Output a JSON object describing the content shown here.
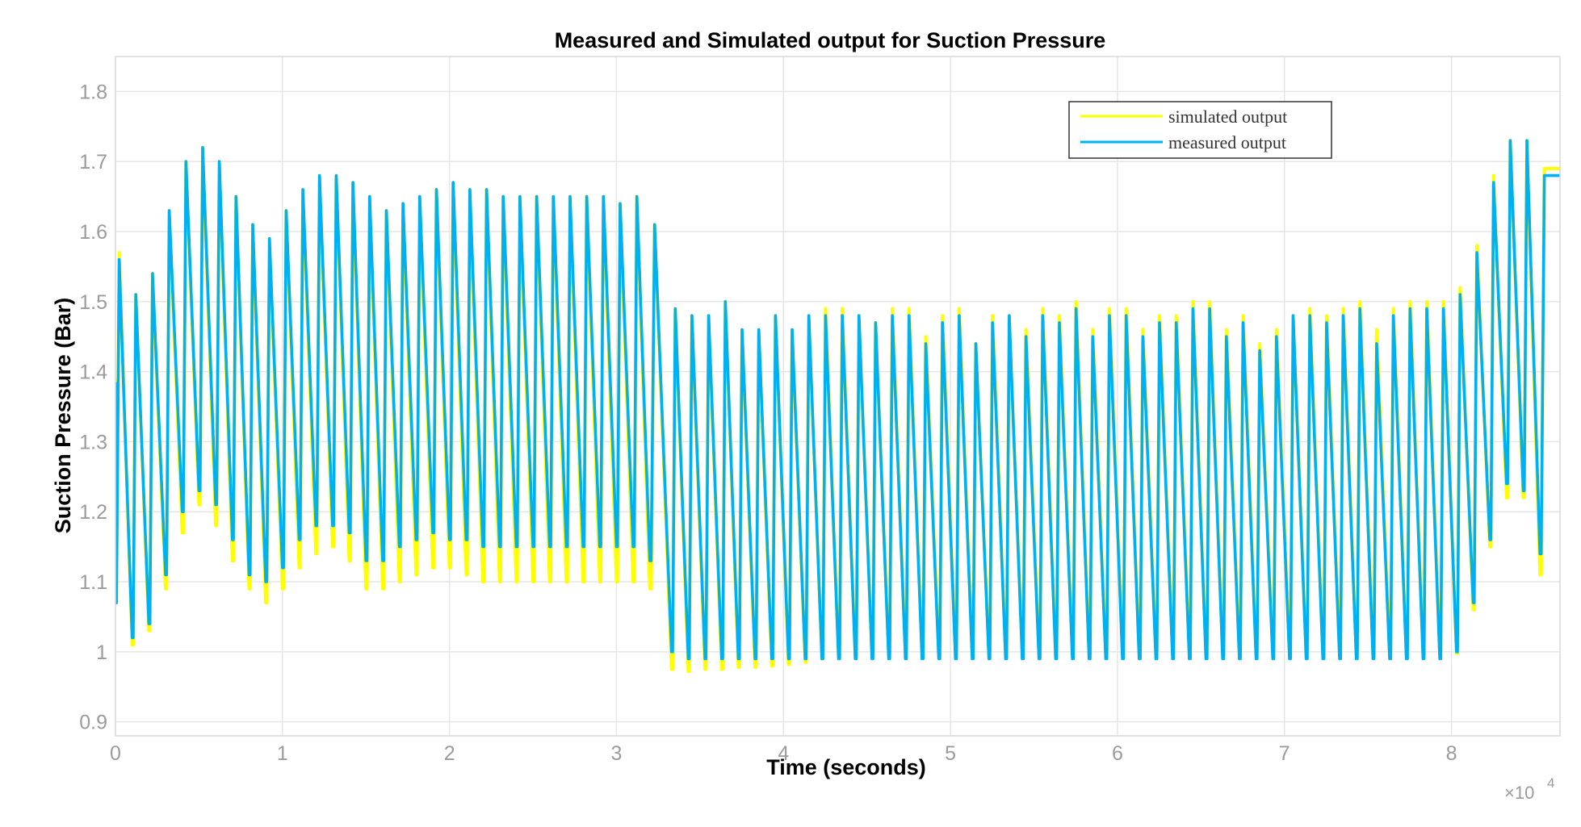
{
  "chart_data": {
    "type": "line",
    "title": "Measured and Simulated output for Suction Pressure",
    "xlabel": "Time (seconds)",
    "ylabel": "Suction Pressure (Bar)",
    "x_exponent_label": "×10",
    "x_exponent_power": "4",
    "xlim": [
      0,
      8.65
    ],
    "ylim": [
      0.88,
      1.85
    ],
    "x_ticks": [
      0,
      1,
      2,
      3,
      4,
      5,
      6,
      7,
      8
    ],
    "x_tick_labels": [
      "0",
      "1",
      "2",
      "3",
      "4",
      "5",
      "6",
      "7",
      "8"
    ],
    "y_ticks": [
      0.9,
      1.0,
      1.1,
      1.2,
      1.3,
      1.4,
      1.5,
      1.6,
      1.7,
      1.8
    ],
    "y_tick_labels": [
      "0.9",
      "1",
      "1.1",
      "1.2",
      "1.3",
      "1.4",
      "1.5",
      "1.6",
      "1.7",
      "1.8"
    ],
    "grid": true,
    "legend_position": "top-right",
    "x_units_note": "x values in units of 10^4 seconds",
    "series": [
      {
        "name": "simulated output",
        "color": "#ffff00",
        "cycle_starts": [
          0,
          0.1,
          0.2,
          0.3,
          0.4,
          0.5,
          0.6,
          0.7,
          0.8,
          0.9,
          1.0,
          1.1,
          1.2,
          1.3,
          1.4,
          1.5,
          1.6,
          1.7,
          1.8,
          1.9,
          2.0,
          2.1,
          2.2,
          2.3,
          2.4,
          2.5,
          2.6,
          2.7,
          2.8,
          2.9,
          3.0,
          3.1,
          3.2,
          3.33,
          3.43,
          3.53,
          3.63,
          3.73,
          3.83,
          3.93,
          4.03,
          4.13,
          4.23,
          4.33,
          4.43,
          4.53,
          4.63,
          4.73,
          4.83,
          4.93,
          5.03,
          5.13,
          5.23,
          5.33,
          5.43,
          5.53,
          5.63,
          5.73,
          5.83,
          5.93,
          6.03,
          6.13,
          6.23,
          6.33,
          6.43,
          6.53,
          6.63,
          6.73,
          6.83,
          6.93,
          7.03,
          7.13,
          7.23,
          7.33,
          7.43,
          7.53,
          7.63,
          7.73,
          7.83,
          7.93,
          8.03,
          8.13,
          8.23,
          8.33,
          8.43,
          8.53
        ],
        "minima": [
          1.07,
          1.01,
          1.03,
          1.09,
          1.17,
          1.21,
          1.18,
          1.13,
          1.09,
          1.07,
          1.09,
          1.12,
          1.14,
          1.15,
          1.13,
          1.09,
          1.09,
          1.1,
          1.11,
          1.12,
          1.12,
          1.11,
          1.1,
          1.1,
          1.1,
          1.1,
          1.1,
          1.1,
          1.1,
          1.1,
          1.1,
          1.1,
          1.09,
          0.975,
          0.972,
          0.975,
          0.975,
          0.978,
          0.978,
          0.98,
          0.982,
          0.985,
          0.99,
          0.993,
          0.995,
          0.996,
          0.997,
          0.998,
          0.998,
          0.998,
          0.998,
          0.998,
          0.998,
          0.998,
          0.998,
          0.998,
          0.998,
          0.998,
          0.998,
          0.998,
          0.998,
          0.998,
          0.998,
          0.998,
          0.998,
          0.998,
          0.998,
          0.998,
          0.998,
          0.998,
          0.998,
          0.998,
          0.998,
          0.998,
          0.998,
          0.998,
          0.998,
          0.998,
          0.998,
          0.998,
          0.998,
          1.06,
          1.15,
          1.22,
          1.22,
          1.11
        ],
        "maxima": [
          1.57,
          1.51,
          1.54,
          1.63,
          1.7,
          1.72,
          1.7,
          1.65,
          1.61,
          1.59,
          1.63,
          1.66,
          1.68,
          1.68,
          1.67,
          1.65,
          1.63,
          1.64,
          1.65,
          1.66,
          1.67,
          1.66,
          1.66,
          1.65,
          1.65,
          1.65,
          1.65,
          1.65,
          1.65,
          1.65,
          1.64,
          1.65,
          1.61,
          1.49,
          1.48,
          1.48,
          1.5,
          1.46,
          1.46,
          1.48,
          1.46,
          1.48,
          1.49,
          1.49,
          1.48,
          1.47,
          1.49,
          1.49,
          1.45,
          1.48,
          1.49,
          1.44,
          1.48,
          1.48,
          1.46,
          1.49,
          1.48,
          1.5,
          1.46,
          1.49,
          1.49,
          1.46,
          1.48,
          1.48,
          1.5,
          1.5,
          1.46,
          1.48,
          1.44,
          1.46,
          1.48,
          1.49,
          1.48,
          1.49,
          1.5,
          1.46,
          1.49,
          1.5,
          1.5,
          1.5,
          1.52,
          1.58,
          1.68,
          1.73,
          1.73,
          1.69
        ]
      },
      {
        "name": "measured output",
        "color": "#00b0f0",
        "cycle_starts": [
          0,
          0.1,
          0.2,
          0.3,
          0.4,
          0.5,
          0.6,
          0.7,
          0.8,
          0.9,
          1.0,
          1.1,
          1.2,
          1.3,
          1.4,
          1.5,
          1.6,
          1.7,
          1.8,
          1.9,
          2.0,
          2.1,
          2.2,
          2.3,
          2.4,
          2.5,
          2.6,
          2.7,
          2.8,
          2.9,
          3.0,
          3.1,
          3.2,
          3.33,
          3.43,
          3.53,
          3.63,
          3.73,
          3.83,
          3.93,
          4.03,
          4.13,
          4.23,
          4.33,
          4.43,
          4.53,
          4.63,
          4.73,
          4.83,
          4.93,
          5.03,
          5.13,
          5.23,
          5.33,
          5.43,
          5.53,
          5.63,
          5.73,
          5.83,
          5.93,
          6.03,
          6.13,
          6.23,
          6.33,
          6.43,
          6.53,
          6.63,
          6.73,
          6.83,
          6.93,
          7.03,
          7.13,
          7.23,
          7.33,
          7.43,
          7.53,
          7.63,
          7.73,
          7.83,
          7.93,
          8.03,
          8.13,
          8.23,
          8.33,
          8.43,
          8.53
        ],
        "minima": [
          1.07,
          1.02,
          1.04,
          1.11,
          1.2,
          1.23,
          1.21,
          1.16,
          1.11,
          1.1,
          1.12,
          1.16,
          1.18,
          1.18,
          1.17,
          1.13,
          1.13,
          1.15,
          1.16,
          1.17,
          1.16,
          1.16,
          1.15,
          1.15,
          1.15,
          1.15,
          1.15,
          1.15,
          1.15,
          1.15,
          1.15,
          1.15,
          1.13,
          1.0,
          0.99,
          0.99,
          0.99,
          0.99,
          0.99,
          0.99,
          0.99,
          0.99,
          0.99,
          0.99,
          0.99,
          0.99,
          0.99,
          0.99,
          0.99,
          0.99,
          0.99,
          0.99,
          0.99,
          0.99,
          0.99,
          0.99,
          0.99,
          0.99,
          0.99,
          0.99,
          0.99,
          0.99,
          0.99,
          0.99,
          0.99,
          0.99,
          0.99,
          0.99,
          0.99,
          0.99,
          0.99,
          0.99,
          0.99,
          0.99,
          0.99,
          0.99,
          0.99,
          0.99,
          0.99,
          0.99,
          1.0,
          1.07,
          1.16,
          1.24,
          1.23,
          1.14
        ],
        "maxima": [
          1.56,
          1.51,
          1.54,
          1.63,
          1.7,
          1.72,
          1.7,
          1.65,
          1.61,
          1.59,
          1.63,
          1.66,
          1.68,
          1.68,
          1.67,
          1.65,
          1.63,
          1.64,
          1.65,
          1.66,
          1.67,
          1.66,
          1.66,
          1.65,
          1.65,
          1.65,
          1.65,
          1.65,
          1.65,
          1.65,
          1.64,
          1.65,
          1.61,
          1.49,
          1.48,
          1.48,
          1.5,
          1.46,
          1.46,
          1.48,
          1.46,
          1.48,
          1.48,
          1.48,
          1.48,
          1.47,
          1.48,
          1.48,
          1.44,
          1.47,
          1.48,
          1.44,
          1.47,
          1.48,
          1.45,
          1.48,
          1.47,
          1.49,
          1.45,
          1.48,
          1.48,
          1.45,
          1.47,
          1.47,
          1.49,
          1.49,
          1.45,
          1.47,
          1.43,
          1.45,
          1.48,
          1.48,
          1.47,
          1.48,
          1.49,
          1.44,
          1.48,
          1.49,
          1.49,
          1.49,
          1.51,
          1.57,
          1.67,
          1.73,
          1.73,
          1.68
        ]
      }
    ]
  }
}
